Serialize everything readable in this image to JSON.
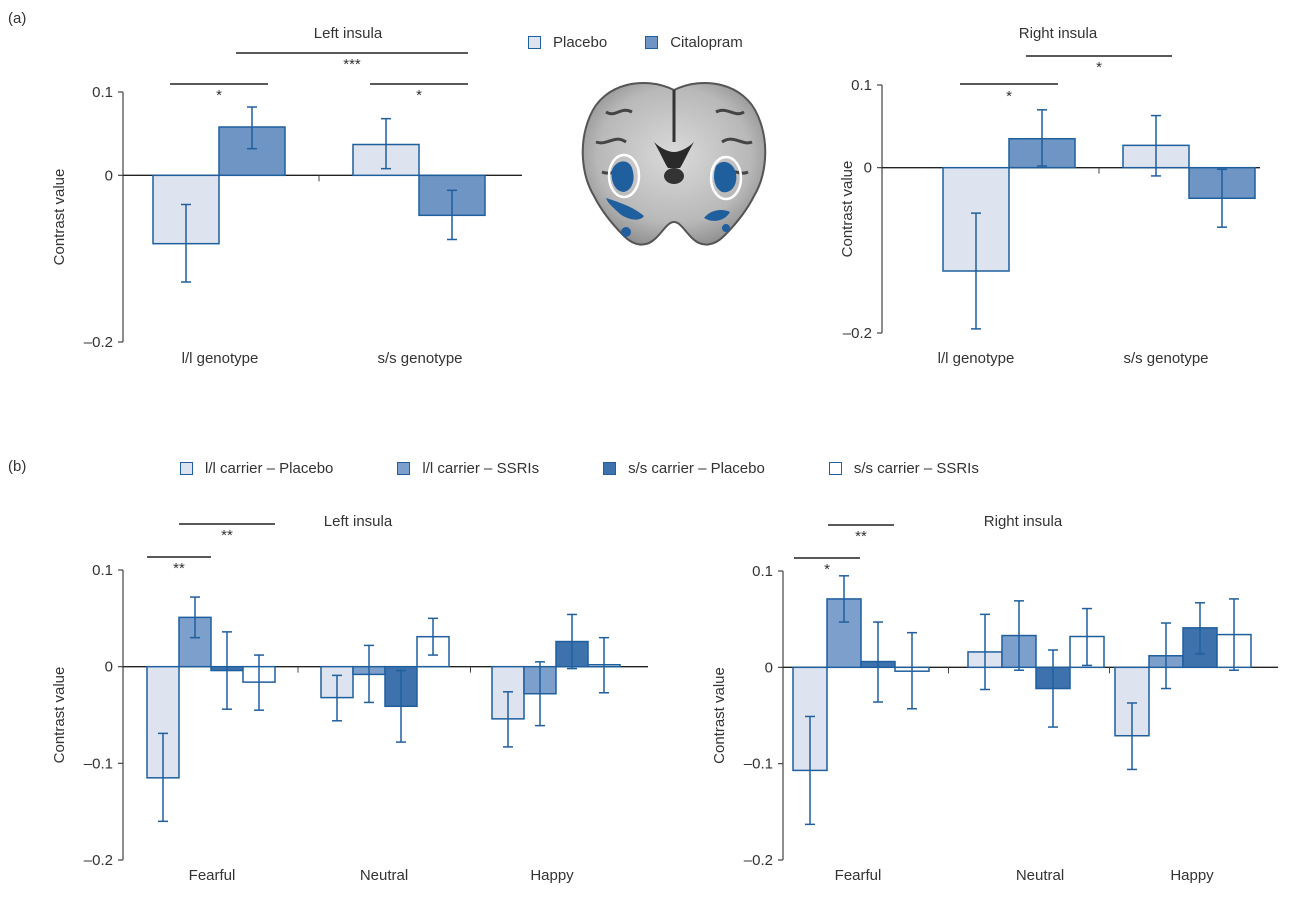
{
  "panels": {
    "a": "(a)",
    "b": "(b)"
  },
  "colors": {
    "placebo": "#dde4ef",
    "citalopram": "#6e95c4",
    "ll_placebo": "#dde4ef",
    "ll_ssri": "#7d9fcb",
    "ss_placebo": "#3e72ad",
    "ss_ssri": "#ffffff",
    "stroke": "#1f5f9e"
  },
  "legend_a": [
    {
      "label": "Placebo",
      "color": "#dde4ef"
    },
    {
      "label": "Citalopram",
      "color": "#6e95c4"
    }
  ],
  "legend_b": [
    {
      "label": "l/l carrier – Placebo",
      "color": "#dde4ef"
    },
    {
      "label": "l/l carrier – SSRIs",
      "color": "#7d9fcb"
    },
    {
      "label": "s/s carrier – Placebo",
      "color": "#3e72ad"
    },
    {
      "label": "s/s carrier – SSRIs",
      "color": "#ffffff"
    }
  ],
  "brain_icon": "brain-coronal-slice-image",
  "chart_data": [
    {
      "type": "bar",
      "title": "Left insula",
      "ylabel": "Contrast value",
      "ylim": [
        -0.2,
        0.1
      ],
      "yticks": [
        "0.1",
        "0",
        "–0.2"
      ],
      "categories": [
        "l/l genotype",
        "s/s genotype"
      ],
      "series": [
        {
          "name": "Placebo",
          "values": [
            -0.082,
            0.037
          ],
          "err_low": [
            -0.128,
            0.008
          ],
          "err_high": [
            -0.035,
            0.068
          ]
        },
        {
          "name": "Citalopram",
          "values": [
            0.058,
            -0.048
          ],
          "err_low": [
            0.032,
            -0.077
          ],
          "err_high": [
            0.082,
            -0.018
          ]
        }
      ],
      "significance": [
        {
          "label": "*",
          "from": [
            0,
            0
          ],
          "to": [
            0,
            1
          ]
        },
        {
          "label": "***",
          "from": [
            0,
            1
          ],
          "to": [
            1,
            1
          ]
        },
        {
          "label": "*",
          "from": [
            1,
            0
          ],
          "to": [
            1,
            1
          ]
        }
      ]
    },
    {
      "type": "bar",
      "title": "Right insula",
      "ylabel": "Contrast value",
      "ylim": [
        -0.2,
        0.1
      ],
      "yticks": [
        "0.1",
        "0",
        "–0.2"
      ],
      "categories": [
        "l/l genotype",
        "s/s genotype"
      ],
      "series": [
        {
          "name": "Placebo",
          "values": [
            -0.125,
            0.027
          ],
          "err_low": [
            -0.195,
            -0.01
          ],
          "err_high": [
            -0.055,
            0.063
          ]
        },
        {
          "name": "Citalopram",
          "values": [
            0.035,
            -0.037
          ],
          "err_low": [
            0.002,
            -0.072
          ],
          "err_high": [
            0.07,
            -0.002
          ]
        }
      ],
      "significance": [
        {
          "label": "*",
          "from": [
            0,
            0
          ],
          "to": [
            0,
            1
          ]
        },
        {
          "label": "*",
          "from": [
            0,
            1
          ],
          "to": [
            1,
            0
          ]
        }
      ]
    },
    {
      "type": "bar",
      "title": "Left insula",
      "ylabel": "Contrast value",
      "ylim": [
        -0.2,
        0.1
      ],
      "yticks": [
        "0.1",
        "0",
        "–0.1",
        "–0.2"
      ],
      "categories": [
        "Fearful",
        "Neutral",
        "Happy"
      ],
      "series": [
        {
          "name": "l/l carrier – Placebo",
          "values": [
            -0.115,
            -0.032,
            -0.054
          ],
          "err_low": [
            -0.16,
            -0.056,
            -0.083
          ],
          "err_high": [
            -0.069,
            -0.009,
            -0.026
          ]
        },
        {
          "name": "l/l carrier – SSRIs",
          "values": [
            0.051,
            -0.008,
            -0.028
          ],
          "err_low": [
            0.03,
            -0.037,
            -0.061
          ],
          "err_high": [
            0.072,
            0.022,
            0.005
          ]
        },
        {
          "name": "s/s carrier – Placebo",
          "values": [
            -0.004,
            -0.041,
            0.026
          ],
          "err_low": [
            -0.044,
            -0.078,
            -0.002
          ],
          "err_high": [
            0.036,
            -0.004,
            0.054
          ]
        },
        {
          "name": "s/s carrier – SSRIs",
          "values": [
            -0.016,
            0.031,
            0.002
          ],
          "err_low": [
            -0.045,
            0.012,
            -0.027
          ],
          "err_high": [
            0.012,
            0.05,
            0.03
          ]
        }
      ],
      "significance": [
        {
          "label": "**",
          "from": [
            0,
            0
          ],
          "to": [
            0,
            1
          ]
        },
        {
          "label": "**",
          "from": [
            0,
            1
          ],
          "to": [
            0,
            3
          ]
        }
      ]
    },
    {
      "type": "bar",
      "title": "Right insula",
      "ylabel": "Contrast value",
      "ylim": [
        -0.2,
        0.1
      ],
      "yticks": [
        "0.1",
        "0",
        "–0.1",
        "–0.2"
      ],
      "categories": [
        "Fearful",
        "Neutral",
        "Happy"
      ],
      "series": [
        {
          "name": "l/l carrier – Placebo",
          "values": [
            -0.107,
            0.016,
            -0.071
          ],
          "err_low": [
            -0.163,
            -0.023,
            -0.106
          ],
          "err_high": [
            -0.051,
            0.055,
            -0.037
          ]
        },
        {
          "name": "l/l carrier – SSRIs",
          "values": [
            0.071,
            0.033,
            0.012
          ],
          "err_low": [
            0.047,
            -0.003,
            -0.022
          ],
          "err_high": [
            0.095,
            0.069,
            0.046
          ]
        },
        {
          "name": "s/s carrier – Placebo",
          "values": [
            0.006,
            -0.022,
            0.041
          ],
          "err_low": [
            -0.036,
            -0.062,
            0.014
          ],
          "err_high": [
            0.047,
            0.018,
            0.067
          ]
        },
        {
          "name": "s/s carrier – SSRIs",
          "values": [
            -0.004,
            0.032,
            0.034
          ],
          "err_low": [
            -0.043,
            0.002,
            -0.003
          ],
          "err_high": [
            0.036,
            0.061,
            0.071
          ]
        }
      ],
      "significance": [
        {
          "label": "*",
          "from": [
            0,
            0
          ],
          "to": [
            0,
            1
          ]
        },
        {
          "label": "**",
          "from": [
            0,
            1
          ],
          "to": [
            0,
            2
          ]
        }
      ]
    }
  ]
}
